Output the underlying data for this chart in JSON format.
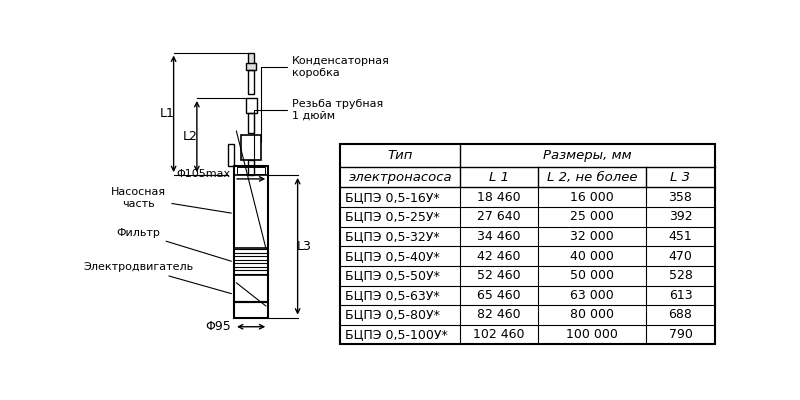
{
  "table_headers_row1_col0": "Тип",
  "table_headers_row1_col1": "Размеры, мм",
  "table_headers_row2": [
    "электронасоса",
    "L 1",
    "L 2, не более",
    "L 3"
  ],
  "table_rows": [
    [
      "БЦПЭ 0,5-16У*",
      "18 460",
      "16 000",
      "358"
    ],
    [
      "БЦПЭ 0,5-25У*",
      "27 640",
      "25 000",
      "392"
    ],
    [
      "БЦПЭ 0,5-32У*",
      "34 460",
      "32 000",
      "451"
    ],
    [
      "БЦПЭ 0,5-40У*",
      "42 460",
      "40 000",
      "470"
    ],
    [
      "БЦПЭ 0,5-50У*",
      "52 460",
      "50 000",
      "528"
    ],
    [
      "БЦПЭ 0,5-63У*",
      "65 460",
      "63 000",
      "613"
    ],
    [
      "БЦПЭ 0,5-80У*",
      "82 460",
      "80 000",
      "688"
    ],
    [
      "БЦПЭ 0,5-100У*",
      "102 460",
      "100 000",
      "790"
    ]
  ],
  "label_kondensatornaya": "Конденсаторная\nкоробка",
  "label_rezba": "Резьба трубная\n1 дюйм",
  "label_nasosnaya": "Насосная\nчасть",
  "label_filtr": "Фильтр",
  "label_electro": "Электродвигатель",
  "label_phi105": "Φ105max",
  "label_phi95": "Φ95",
  "label_L1": "L1",
  "label_L2": "L2",
  "label_L3": "L3",
  "bg_color": "#ffffff",
  "lc": "#000000"
}
